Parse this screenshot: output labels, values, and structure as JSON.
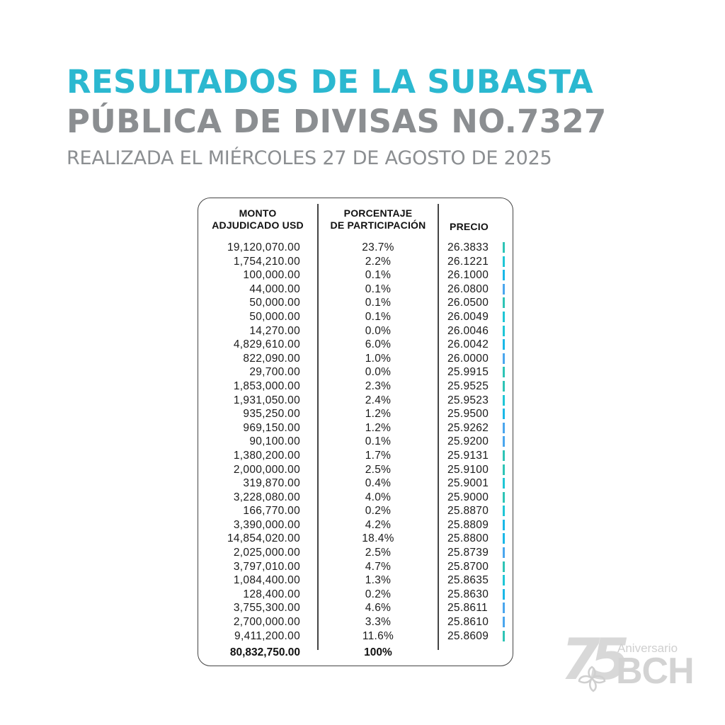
{
  "header": {
    "title_line1": "RESULTADOS DE LA SUBASTA",
    "title_line2": "PÚBLICA DE DIVISAS NO.7327",
    "subtitle": "REALIZADA EL MIÉRCOLES 27 DE AGOSTO DE 2025"
  },
  "colors": {
    "title_accent": "#2bb8d0",
    "title_gray": "#8b8e91",
    "bar_colors": [
      "#2ec4b6",
      "#1fc6d6",
      "#1ab8e8",
      "#4aa6ee"
    ]
  },
  "table": {
    "columns": {
      "amount": "MONTO\nADJUDICADO USD",
      "amount_l1": "MONTO",
      "amount_l2": "ADJUDICADO USD",
      "percent_l1": "PORCENTAJE",
      "percent_l2": "DE PARTICIPACIÓN",
      "price": "PRECIO"
    },
    "rows": [
      {
        "amount": "19,120,070.00",
        "percent": "23.7%",
        "price": "26.3833",
        "bar": "#2ec4b6"
      },
      {
        "amount": "1,754,210.00",
        "percent": "2.2%",
        "price": "26.1221",
        "bar": "#1fc6d6"
      },
      {
        "amount": "100,000.00",
        "percent": "0.1%",
        "price": "26.1000",
        "bar": "#1ab8e8"
      },
      {
        "amount": "44,000.00",
        "percent": "0.1%",
        "price": "26.0800",
        "bar": "#4aa6ee"
      },
      {
        "amount": "50,000.00",
        "percent": "0.1%",
        "price": "26.0500",
        "bar": "#2ec4b6"
      },
      {
        "amount": "50,000.00",
        "percent": "0.1%",
        "price": "26.0049",
        "bar": "#1fc6d6"
      },
      {
        "amount": "14,270.00",
        "percent": "0.0%",
        "price": "26.0046",
        "bar": "#1fc6d6"
      },
      {
        "amount": "4,829,610.00",
        "percent": "6.0%",
        "price": "26.0042",
        "bar": "#1ab8e8"
      },
      {
        "amount": "822,090.00",
        "percent": "1.0%",
        "price": "26.0000",
        "bar": "#4aa6ee"
      },
      {
        "amount": "29,700.00",
        "percent": "0.0%",
        "price": "25.9915",
        "bar": "#2ec4b6"
      },
      {
        "amount": "1,853,000.00",
        "percent": "2.3%",
        "price": "25.9525",
        "bar": "#2ec4b6"
      },
      {
        "amount": "1,931,050.00",
        "percent": "2.4%",
        "price": "25.9523",
        "bar": "#1fc6d6"
      },
      {
        "amount": "935,250.00",
        "percent": "1.2%",
        "price": "25.9500",
        "bar": "#1ab8e8"
      },
      {
        "amount": "969,150.00",
        "percent": "1.2%",
        "price": "25.9262",
        "bar": "#4aa6ee"
      },
      {
        "amount": "90,100.00",
        "percent": "0.1%",
        "price": "25.9200",
        "bar": "#4aa6ee"
      },
      {
        "amount": "1,380,200.00",
        "percent": "1.7%",
        "price": "25.9131",
        "bar": "#2ec4b6"
      },
      {
        "amount": "2,000,000.00",
        "percent": "2.5%",
        "price": "25.9100",
        "bar": "#2ec4b6"
      },
      {
        "amount": "319,870.00",
        "percent": "0.4%",
        "price": "25.9001",
        "bar": "#1fc6d6"
      },
      {
        "amount": "3,228,080.00",
        "percent": "4.0%",
        "price": "25.9000",
        "bar": "#2ec4b6"
      },
      {
        "amount": "166,770.00",
        "percent": "0.2%",
        "price": "25.8870",
        "bar": "#1fc6d6"
      },
      {
        "amount": "3,390,000.00",
        "percent": "4.2%",
        "price": "25.8809",
        "bar": "#1ab8e8"
      },
      {
        "amount": "14,854,020.00",
        "percent": "18.4%",
        "price": "25.8800",
        "bar": "#1ab8e8"
      },
      {
        "amount": "2,025,000.00",
        "percent": "2.5%",
        "price": "25.8739",
        "bar": "#4aa6ee"
      },
      {
        "amount": "3,797,010.00",
        "percent": "4.7%",
        "price": "25.8700",
        "bar": "#2ec4b6"
      },
      {
        "amount": "1,084,400.00",
        "percent": "1.3%",
        "price": "25.8635",
        "bar": "#1fc6d6"
      },
      {
        "amount": "128,400.00",
        "percent": "0.2%",
        "price": "25.8630",
        "bar": "#1ab8e8"
      },
      {
        "amount": "3,755,300.00",
        "percent": "4.6%",
        "price": "25.8611",
        "bar": "#4aa6ee"
      },
      {
        "amount": "2,700,000.00",
        "percent": "3.3%",
        "price": "25.8610",
        "bar": "#4aa6ee"
      },
      {
        "amount": "9,411,200.00",
        "percent": "11.6%",
        "price": "25.8609",
        "bar": "#2ec4b6"
      }
    ],
    "total": {
      "amount": "80,832,750.00",
      "percent": "100%"
    }
  },
  "logo": {
    "number": "75",
    "label_small": "Aniversario",
    "label_big": "BCH"
  }
}
